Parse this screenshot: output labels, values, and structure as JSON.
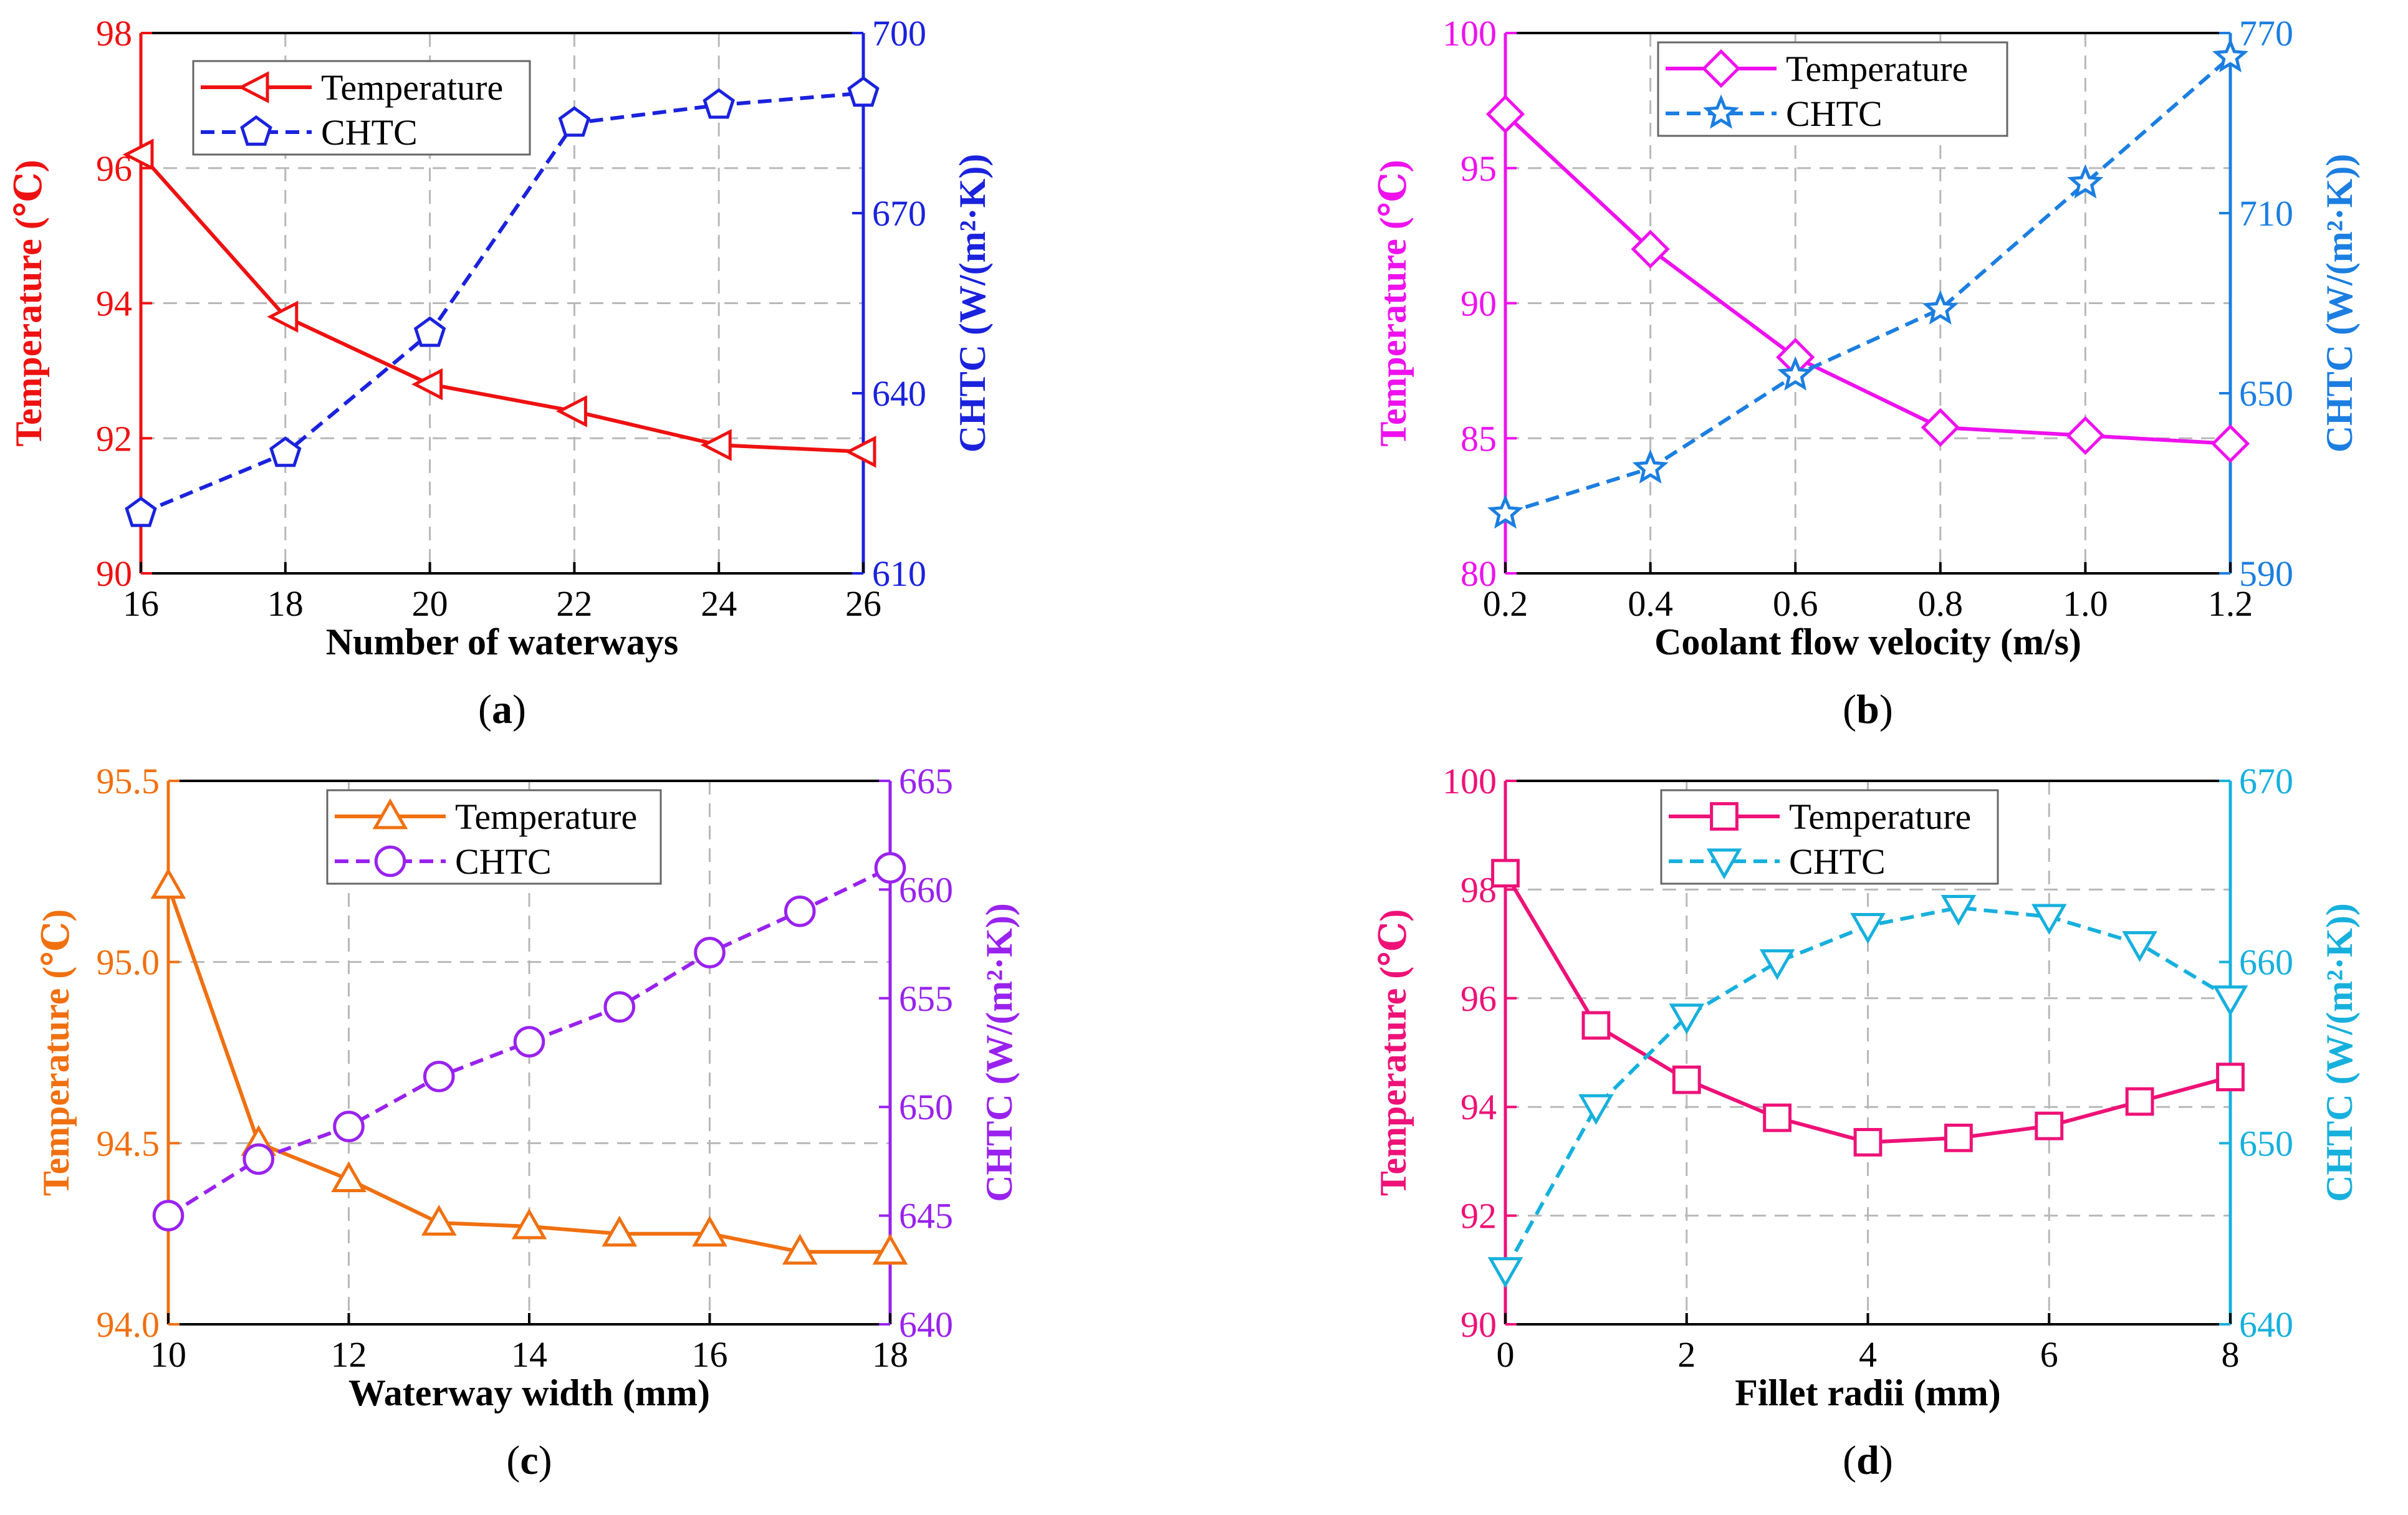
{
  "chart_data": [
    {
      "type": "line",
      "panel": "a",
      "caption": "a",
      "xlabel": "Number of waterways",
      "ylabel": "Temperature (℃)",
      "y2label": "CHTC (W/(m²·K))",
      "xlim": [
        16,
        26
      ],
      "ylim": [
        90,
        98
      ],
      "y2lim": [
        610,
        700
      ],
      "xticks": [
        16,
        18,
        20,
        22,
        24,
        26
      ],
      "xtick_labels": [
        "16",
        "18",
        "20",
        "22",
        "24",
        "26"
      ],
      "yticks": [
        90,
        92,
        94,
        96,
        98
      ],
      "ytick_labels": [
        "90",
        "92",
        "94",
        "96",
        "98"
      ],
      "y2ticks": [
        610,
        640,
        670,
        700
      ],
      "y2tick_labels": [
        "610",
        "640",
        "670",
        "700"
      ],
      "grid": true,
      "legend_position": "top-left",
      "temp_color": "#ee1111",
      "chtc_color": "#1a22dd",
      "series": [
        {
          "name": "Temperature",
          "axis": "left",
          "marker": "triangle-left",
          "style": "solid",
          "x": [
            16,
            18,
            20,
            22,
            24,
            26
          ],
          "values": [
            96.2,
            93.8,
            92.8,
            92.4,
            91.9,
            91.8
          ]
        },
        {
          "name": "CHTC",
          "axis": "right",
          "marker": "pentagon",
          "style": "dashed",
          "x": [
            16,
            18,
            20,
            22,
            24,
            26
          ],
          "values": [
            620,
            630,
            650,
            685,
            688,
            690
          ]
        }
      ]
    },
    {
      "type": "line",
      "panel": "b",
      "caption": "b",
      "xlabel": "Coolant flow velocity (m/s)",
      "ylabel": "Temperature (℃)",
      "y2label": "CHTC (W/(m²·K))",
      "xlim": [
        0.2,
        1.2
      ],
      "ylim": [
        80,
        100
      ],
      "y2lim": [
        590,
        770
      ],
      "xticks": [
        0.2,
        0.4,
        0.6,
        0.8,
        1.0,
        1.2
      ],
      "xtick_labels": [
        "0.2",
        "0.4",
        "0.6",
        "0.8",
        "1.0",
        "1.2"
      ],
      "yticks": [
        80,
        85,
        90,
        95,
        100
      ],
      "ytick_labels": [
        "80",
        "85",
        "90",
        "95",
        "100"
      ],
      "y2ticks": [
        590,
        650,
        710,
        770
      ],
      "y2tick_labels": [
        "590",
        "650",
        "710",
        "770"
      ],
      "grid": true,
      "legend_position": "top-center",
      "temp_color": "#ee11ee",
      "chtc_color": "#1c7ee0",
      "series": [
        {
          "name": "Temperature",
          "axis": "left",
          "marker": "diamond",
          "style": "solid",
          "x": [
            0.2,
            0.4,
            0.6,
            0.8,
            1.0,
            1.2
          ],
          "values": [
            97.0,
            92.0,
            88.0,
            85.4,
            85.1,
            84.8
          ]
        },
        {
          "name": "CHTC",
          "axis": "right",
          "marker": "star",
          "style": "dashed",
          "x": [
            0.2,
            0.4,
            0.6,
            0.8,
            1.0,
            1.2
          ],
          "values": [
            610,
            625,
            656,
            678,
            720,
            762
          ]
        }
      ]
    },
    {
      "type": "line",
      "panel": "c",
      "caption": "c",
      "xlabel": "Waterway width (mm)",
      "ylabel": "Temperature (℃)",
      "y2label": "CHTC (W/(m²·K))",
      "xlim": [
        10,
        18
      ],
      "ylim": [
        94.0,
        95.5
      ],
      "y2lim": [
        640,
        665
      ],
      "xticks": [
        10,
        12,
        14,
        16,
        18
      ],
      "xtick_labels": [
        "10",
        "12",
        "14",
        "16",
        "18"
      ],
      "yticks": [
        94.0,
        94.5,
        95.0,
        95.5
      ],
      "ytick_labels": [
        "94.0",
        "94.5",
        "95.0",
        "95.5"
      ],
      "y2ticks": [
        640,
        645,
        650,
        655,
        660,
        665
      ],
      "y2tick_labels": [
        "640",
        "645",
        "650",
        "655",
        "660",
        "665"
      ],
      "grid": true,
      "legend_position": "top-center",
      "temp_color": "#f07010",
      "chtc_color": "#9922ee",
      "series": [
        {
          "name": "Temperature",
          "axis": "left",
          "marker": "triangle-up",
          "style": "solid",
          "x": [
            10,
            11,
            12,
            13,
            14,
            15,
            16,
            17,
            18
          ],
          "values": [
            95.21,
            94.5,
            94.4,
            94.28,
            94.27,
            94.25,
            94.25,
            94.2,
            94.2
          ]
        },
        {
          "name": "CHTC",
          "axis": "right",
          "marker": "circle",
          "style": "dashed",
          "x": [
            10,
            11,
            12,
            13,
            14,
            15,
            16,
            17,
            18
          ],
          "values": [
            645,
            647.6,
            649.1,
            651.4,
            653.0,
            654.6,
            657.1,
            659.0,
            661.0
          ]
        }
      ]
    },
    {
      "type": "line",
      "panel": "d",
      "caption": "d",
      "xlabel": "Fillet radii (mm)",
      "ylabel": "Temperature (℃)",
      "y2label": "CHTC (W/(m²·K))",
      "xlim": [
        0,
        8
      ],
      "ylim": [
        90,
        100
      ],
      "y2lim": [
        640,
        670
      ],
      "xticks": [
        0,
        2,
        4,
        6,
        8
      ],
      "xtick_labels": [
        "0",
        "2",
        "4",
        "6",
        "8"
      ],
      "yticks": [
        90,
        92,
        94,
        96,
        98,
        100
      ],
      "ytick_labels": [
        "90",
        "92",
        "94",
        "96",
        "98",
        "100"
      ],
      "y2ticks": [
        640,
        650,
        660,
        670
      ],
      "y2tick_labels": [
        "640",
        "650",
        "660",
        "670"
      ],
      "grid": true,
      "legend_position": "top-center",
      "temp_color": "#ee1177",
      "chtc_color": "#17b0dd",
      "series": [
        {
          "name": "Temperature",
          "axis": "left",
          "marker": "square",
          "style": "solid",
          "x": [
            0,
            1,
            2,
            3,
            4,
            5,
            6,
            7,
            8
          ],
          "values": [
            98.3,
            95.5,
            94.5,
            93.8,
            93.35,
            93.43,
            93.65,
            94.1,
            94.55
          ]
        },
        {
          "name": "CHTC",
          "axis": "right",
          "marker": "triangle-down",
          "style": "dashed",
          "x": [
            0,
            1,
            2,
            3,
            4,
            5,
            6,
            7,
            8
          ],
          "values": [
            643,
            652,
            657,
            660,
            662,
            663,
            662.5,
            661,
            658
          ]
        }
      ]
    }
  ]
}
